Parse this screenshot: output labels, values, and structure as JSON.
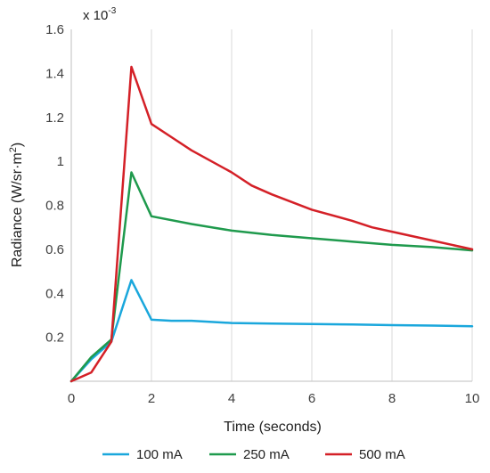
{
  "chart_data": {
    "type": "line",
    "title": "",
    "xlabel": "Time (seconds)",
    "ylabel_main": "Radiance (W/sr·m",
    "ylabel_sup": "2",
    "ylabel_end": ")",
    "multiplier_base": "x 10",
    "multiplier_exp": "-3",
    "xlim": [
      0,
      10
    ],
    "ylim": [
      0,
      1.6
    ],
    "x_ticks": [
      0,
      2,
      4,
      6,
      8,
      10
    ],
    "y_ticks": [
      0.2,
      0.4,
      0.6,
      0.8,
      1,
      1.2,
      1.4,
      1.6
    ],
    "grid": "vertical",
    "legend_position": "bottom",
    "series": [
      {
        "name": "100 mA",
        "color": "#1aa7dc",
        "x": [
          0,
          0.5,
          1,
          1.5,
          2,
          2.5,
          3,
          4,
          5,
          6,
          7,
          8,
          9,
          10
        ],
        "y": [
          0.0,
          0.1,
          0.18,
          0.46,
          0.28,
          0.275,
          0.275,
          0.265,
          0.262,
          0.26,
          0.258,
          0.255,
          0.253,
          0.25
        ]
      },
      {
        "name": "250 mA",
        "color": "#1f9a4d",
        "x": [
          0,
          0.5,
          1,
          1.5,
          2,
          3,
          4,
          5,
          6,
          7,
          8,
          9,
          10
        ],
        "y": [
          0.0,
          0.11,
          0.19,
          0.95,
          0.75,
          0.715,
          0.685,
          0.665,
          0.65,
          0.635,
          0.62,
          0.61,
          0.595
        ]
      },
      {
        "name": "500 mA",
        "color": "#d42027",
        "x": [
          0,
          0.5,
          1,
          1.5,
          2,
          2.5,
          3,
          4,
          4.5,
          5,
          6,
          7,
          7.5,
          8,
          9,
          10
        ],
        "y": [
          0.0,
          0.04,
          0.18,
          1.43,
          1.17,
          1.11,
          1.05,
          0.95,
          0.89,
          0.85,
          0.78,
          0.73,
          0.7,
          0.68,
          0.64,
          0.6
        ]
      }
    ]
  }
}
